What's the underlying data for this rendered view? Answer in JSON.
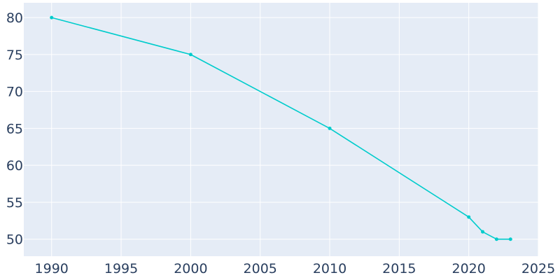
{
  "chart_data": {
    "type": "line",
    "x": [
      1990,
      2000,
      2010,
      2020,
      2021,
      2022,
      2023
    ],
    "series": [
      {
        "values": [
          80,
          75,
          65,
          53,
          51,
          50,
          50
        ]
      }
    ],
    "title": "",
    "xlabel": "",
    "ylabel": "",
    "xlim": [
      1988,
      2025
    ],
    "ylim": [
      47.7,
      82
    ],
    "x_ticks": [
      1990,
      1995,
      2000,
      2005,
      2010,
      2015,
      2020,
      2025
    ],
    "y_ticks": [
      50,
      55,
      60,
      65,
      70,
      75,
      80
    ],
    "grid": true,
    "legend": "none",
    "colors": {
      "plot_background": "#e5ecf6",
      "grid": "#ffffff",
      "line": "#00cccc",
      "tick_text": "#2a3f5f"
    }
  }
}
